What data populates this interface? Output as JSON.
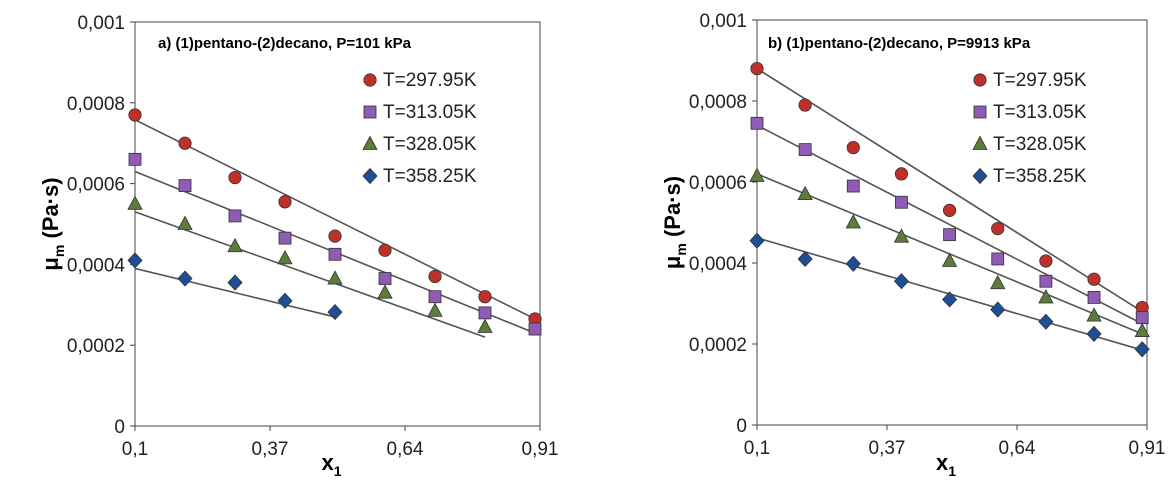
{
  "chart_data": [
    {
      "type": "scatter",
      "title": "a) (1)pentano-(2)decano, P=101 kPa",
      "xlabel": "x",
      "xlabel_sub": "1",
      "ylabel": "μ",
      "ylabel_sub": "m",
      "ylabel_unit": " (Pa·s)",
      "xlim": [
        0.1,
        0.91
      ],
      "ylim": [
        0,
        0.001
      ],
      "x_ticks": [
        "0,1",
        "0,37",
        "0,64",
        "0,91"
      ],
      "y_ticks": [
        "0",
        "0,0002",
        "0,0004",
        "0,0006",
        "0,0008",
        "0,001"
      ],
      "legend_position": "top-right",
      "series": [
        {
          "name": "T=297.95K",
          "marker": "circle",
          "color": "#c0302b",
          "x": [
            0.1,
            0.2,
            0.3,
            0.4,
            0.5,
            0.6,
            0.7,
            0.8,
            0.9
          ],
          "y": [
            0.00077,
            0.0007,
            0.000615,
            0.000555,
            0.00047,
            0.000435,
            0.00037,
            0.00032,
            0.000265
          ],
          "fit": [
            0.000758,
            0.000265
          ]
        },
        {
          "name": "T=313.05K",
          "marker": "square",
          "color": "#8e5bb5",
          "x": [
            0.1,
            0.2,
            0.3,
            0.4,
            0.5,
            0.6,
            0.7,
            0.8,
            0.9
          ],
          "y": [
            0.00066,
            0.000595,
            0.00052,
            0.000465,
            0.000425,
            0.000365,
            0.00032,
            0.00028,
            0.00024
          ],
          "fit": [
            0.00063,
            0.00023
          ]
        },
        {
          "name": "T=328.05K",
          "marker": "triangle",
          "color": "#5c7c3a",
          "x": [
            0.1,
            0.2,
            0.3,
            0.4,
            0.5,
            0.6,
            0.7,
            0.8
          ],
          "y": [
            0.00055,
            0.0005,
            0.000445,
            0.000415,
            0.000365,
            0.00033,
            0.000285,
            0.000245
          ],
          "fit": [
            0.00053,
            0.00022
          ]
        },
        {
          "name": "T=358.25K",
          "marker": "diamond",
          "color": "#1f4e96",
          "x": [
            0.1,
            0.2,
            0.3,
            0.4,
            0.5
          ],
          "y": [
            0.00041,
            0.000365,
            0.000355,
            0.00031,
            0.000282
          ],
          "fit": [
            0.00039,
            0.00027
          ]
        }
      ]
    },
    {
      "type": "scatter",
      "title": "b) (1)pentano-(2)decano, P=9913 kPa",
      "xlabel": "x",
      "xlabel_sub": "1",
      "ylabel": "μ",
      "ylabel_sub": "m",
      "ylabel_unit": " (Pa·s)",
      "xlim": [
        0.1,
        0.91
      ],
      "ylim": [
        0,
        0.001
      ],
      "x_ticks": [
        "0,1",
        "0,37",
        "0,64",
        "0,91"
      ],
      "y_ticks": [
        "0",
        "0,0002",
        "0,0004",
        "0,0006",
        "0,0008",
        "0,001"
      ],
      "legend_position": "top-right",
      "series": [
        {
          "name": "T=297.95K",
          "marker": "circle",
          "color": "#c0302b",
          "x": [
            0.1,
            0.2,
            0.3,
            0.4,
            0.5,
            0.6,
            0.7,
            0.8,
            0.9
          ],
          "y": [
            0.00088,
            0.00079,
            0.000685,
            0.00062,
            0.00053,
            0.000485,
            0.000405,
            0.00036,
            0.00029
          ],
          "fit": [
            0.00088,
            0.00028
          ]
        },
        {
          "name": "T=313.05K",
          "marker": "square",
          "color": "#8e5bb5",
          "x": [
            0.1,
            0.2,
            0.3,
            0.4,
            0.5,
            0.6,
            0.7,
            0.8,
            0.9
          ],
          "y": [
            0.000745,
            0.00068,
            0.00059,
            0.00055,
            0.00047,
            0.00041,
            0.000355,
            0.000315,
            0.000265
          ],
          "fit": [
            0.00074,
            0.00025
          ]
        },
        {
          "name": "T=328.05K",
          "marker": "triangle",
          "color": "#5c7c3a",
          "x": [
            0.1,
            0.2,
            0.3,
            0.4,
            0.5,
            0.6,
            0.7,
            0.8,
            0.9
          ],
          "y": [
            0.000615,
            0.00057,
            0.0005,
            0.000465,
            0.000405,
            0.00035,
            0.000315,
            0.00027,
            0.000232
          ],
          "fit": [
            0.00062,
            0.000225
          ]
        },
        {
          "name": "T=358.25K",
          "marker": "diamond",
          "color": "#1f4e96",
          "x": [
            0.1,
            0.2,
            0.3,
            0.4,
            0.5,
            0.6,
            0.7,
            0.8,
            0.9
          ],
          "y": [
            0.000455,
            0.00041,
            0.000398,
            0.000355,
            0.00031,
            0.000285,
            0.000255,
            0.000225,
            0.000187
          ],
          "fit": [
            0.000462,
            0.000185
          ]
        }
      ]
    }
  ]
}
